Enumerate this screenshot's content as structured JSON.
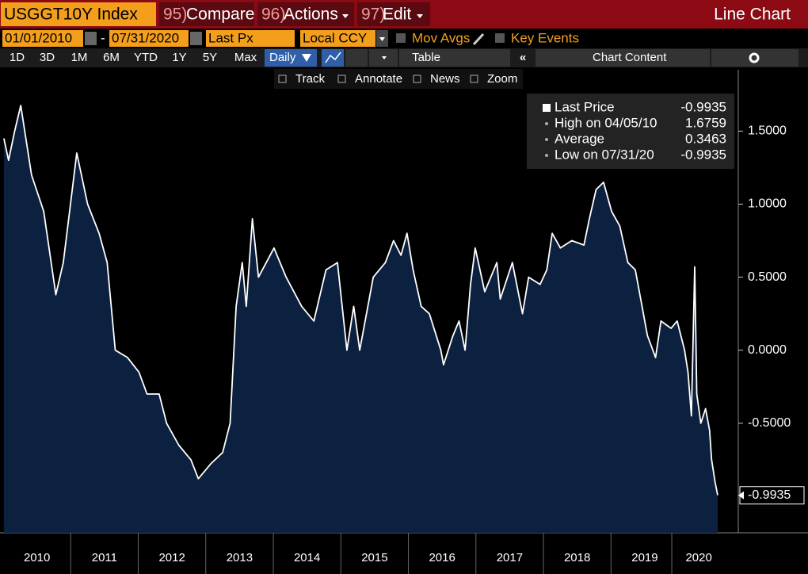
{
  "toolbar": {
    "security": "USGGT10Y Index",
    "compare_num": "95)",
    "compare": "Compare",
    "actions_num": "96)",
    "actions": "Actions",
    "edit_num": "97)",
    "edit": "Edit",
    "view": "Line Chart",
    "start_date": "01/01/2010",
    "date_sep": "-",
    "end_date": "07/31/2020",
    "field": "Last Px",
    "currency": "Local CCY",
    "mov_avgs": "Mov Avgs",
    "key_events": "Key Events",
    "periods": [
      "1D",
      "3D",
      "1M",
      "6M",
      "YTD",
      "1Y",
      "5Y",
      "Max"
    ],
    "frequency": "Daily",
    "table": "Table",
    "chart_content": "Chart Content",
    "tools": [
      "Track",
      "Annotate",
      "News",
      "Zoom"
    ]
  },
  "chart_data": {
    "type": "line",
    "x": [
      2010.01,
      2010.08,
      2010.17,
      2010.26,
      2010.42,
      2010.6,
      2010.78,
      2010.89,
      2011.09,
      2011.25,
      2011.42,
      2011.54,
      2011.66,
      2011.84,
      2012.01,
      2012.13,
      2012.31,
      2012.42,
      2012.6,
      2012.78,
      2012.89,
      2013.07,
      2013.25,
      2013.36,
      2013.45,
      2013.54,
      2013.6,
      2013.69,
      2013.78,
      2014.01,
      2014.19,
      2014.42,
      2014.6,
      2014.78,
      2014.95,
      2015.09,
      2015.19,
      2015.28,
      2015.48,
      2015.66,
      2015.78,
      2015.89,
      2015.98,
      2016.07,
      2016.19,
      2016.31,
      2016.48,
      2016.52,
      2016.66,
      2016.75,
      2016.84,
      2016.92,
      2016.99,
      2017.13,
      2017.31,
      2017.36,
      2017.54,
      2017.69,
      2017.78,
      2017.95,
      2018.05,
      2018.13,
      2018.25,
      2018.42,
      2018.6,
      2018.68,
      2018.78,
      2018.89,
      2019.01,
      2019.13,
      2019.25,
      2019.36,
      2019.46,
      2019.54,
      2019.66,
      2019.74,
      2019.89,
      2019.98,
      2020.09,
      2020.14,
      2020.19,
      2020.24,
      2020.27,
      2020.33,
      2020.4,
      2020.46,
      2020.49,
      2020.54,
      2020.58
    ],
    "series": [
      {
        "name": "Last Price",
        "color": "#ffffff",
        "fill": "#0c2140",
        "values": [
          1.45,
          1.3,
          1.5,
          1.6759,
          1.2,
          0.95,
          0.38,
          0.6,
          1.35,
          1.0,
          0.8,
          0.6,
          0.0,
          -0.05,
          -0.15,
          -0.3,
          -0.3,
          -0.5,
          -0.65,
          -0.75,
          -0.88,
          -0.78,
          -0.7,
          -0.5,
          0.3,
          0.6,
          0.3,
          0.9,
          0.5,
          0.7,
          0.5,
          0.3,
          0.2,
          0.55,
          0.6,
          0.0,
          0.3,
          0.0,
          0.5,
          0.6,
          0.75,
          0.65,
          0.8,
          0.55,
          0.3,
          0.25,
          0.0,
          -0.1,
          0.1,
          0.2,
          0.0,
          0.45,
          0.7,
          0.4,
          0.6,
          0.35,
          0.6,
          0.25,
          0.5,
          0.45,
          0.55,
          0.8,
          0.7,
          0.75,
          0.72,
          0.9,
          1.1,
          1.15,
          0.95,
          0.85,
          0.6,
          0.55,
          0.3,
          0.1,
          -0.05,
          0.2,
          0.15,
          0.2,
          0.0,
          -0.15,
          -0.45,
          0.57,
          -0.3,
          -0.5,
          -0.4,
          -0.55,
          -0.75,
          -0.9,
          -0.9935
        ]
      }
    ],
    "xlim": [
      2010,
      2020.58
    ],
    "xticks": [
      {
        "value": 2010.5,
        "label": "2010"
      },
      {
        "value": 2011.5,
        "label": "2011"
      },
      {
        "value": 2012.5,
        "label": "2012"
      },
      {
        "value": 2013.5,
        "label": "2013"
      },
      {
        "value": 2014.5,
        "label": "2014"
      },
      {
        "value": 2015.5,
        "label": "2015"
      },
      {
        "value": 2016.5,
        "label": "2016"
      },
      {
        "value": 2017.5,
        "label": "2017"
      },
      {
        "value": 2018.5,
        "label": "2018"
      },
      {
        "value": 2019.5,
        "label": "2019"
      },
      {
        "value": 2020.3,
        "label": "2020"
      }
    ],
    "ylim": [
      -1.25,
      1.92
    ],
    "yticks": [
      {
        "value": -0.9935,
        "label": "-0.9935"
      },
      {
        "value": -0.5,
        "label": "-0.5000"
      },
      {
        "value": 0,
        "label": "0.0000"
      },
      {
        "value": 0.5,
        "label": "0.5000"
      },
      {
        "value": 1,
        "label": "1.0000"
      },
      {
        "value": 1.5,
        "label": "1.5000"
      }
    ],
    "stats": [
      {
        "label": "Last Price",
        "value": -0.9935
      },
      {
        "label": "High on 04/05/10",
        "value": 1.6759
      },
      {
        "label": "Average",
        "value": 0.3463
      },
      {
        "label": "Low on 07/31/20",
        "value": -0.9935
      }
    ]
  }
}
